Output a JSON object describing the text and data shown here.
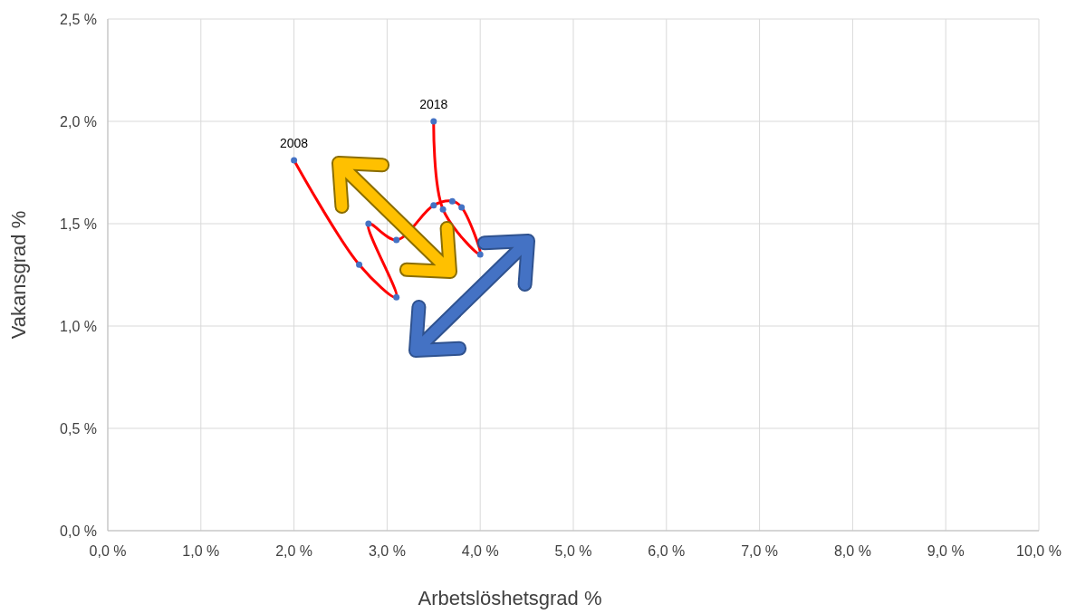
{
  "chart_data": {
    "type": "line",
    "xlabel": "Arbetslöshetsgrad %",
    "ylabel": "Vakansgrad %",
    "xlim": [
      0,
      10
    ],
    "ylim": [
      0,
      2.5
    ],
    "xticks": [
      {
        "value": 0,
        "label": "0,0 %"
      },
      {
        "value": 1,
        "label": "1,0 %"
      },
      {
        "value": 2,
        "label": "2,0 %"
      },
      {
        "value": 3,
        "label": "3,0 %"
      },
      {
        "value": 4,
        "label": "4,0 %"
      },
      {
        "value": 5,
        "label": "5,0 %"
      },
      {
        "value": 6,
        "label": "6,0 %"
      },
      {
        "value": 7,
        "label": "7,0 %"
      },
      {
        "value": 8,
        "label": "8,0 %"
      },
      {
        "value": 9,
        "label": "9,0 %"
      },
      {
        "value": 10,
        "label": "10,0 %"
      }
    ],
    "yticks": [
      {
        "value": 0,
        "label": "0,0 %"
      },
      {
        "value": 0.5,
        "label": "0,5 %"
      },
      {
        "value": 1,
        "label": "1,0 %"
      },
      {
        "value": 1.5,
        "label": "1,5 %"
      },
      {
        "value": 2,
        "label": "2,0 %"
      },
      {
        "value": 2.5,
        "label": "2,5 %"
      }
    ],
    "grid": true,
    "marker": "circle",
    "line_style": "solid",
    "series": [
      {
        "color": "#ff0000",
        "colors": [
          "#4472c4",
          "#4472c4",
          "#4472c4",
          "#4472c4",
          "#4472c4",
          "#4472c4",
          "#4472c4",
          "#4472c4",
          "#4472c4",
          "#4472c4",
          "#4472c4"
        ],
        "x": [
          2.0,
          2.7,
          3.1,
          2.8,
          3.1,
          3.5,
          3.7,
          3.8,
          4.0,
          3.6,
          3.5
        ],
        "values": [
          1.81,
          1.3,
          1.14,
          1.5,
          1.42,
          1.59,
          1.61,
          1.58,
          1.35,
          1.57,
          2.0
        ]
      }
    ],
    "annotations": [
      {
        "text": "2008",
        "x": 2.0,
        "y": 1.81
      },
      {
        "text": "2018",
        "x": 3.5,
        "y": 2.0
      }
    ]
  }
}
